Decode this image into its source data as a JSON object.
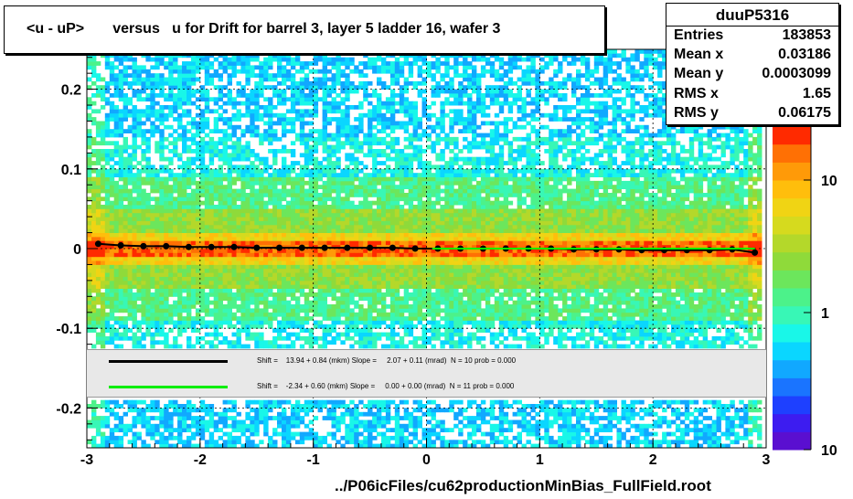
{
  "title": "<u - uP>       versus   u for Drift for barrel 3, layer 5 ladder 16, wafer 3",
  "stats": {
    "name": "duuP5316",
    "rows": [
      {
        "label": "Entries",
        "value": "183853"
      },
      {
        "label": "Mean x",
        "value": "0.03186"
      },
      {
        "label": "Mean y",
        "value": "0.0003099"
      },
      {
        "label": "RMS x",
        "value": "1.65"
      },
      {
        "label": "RMS y",
        "value": "0.06175"
      }
    ]
  },
  "fits": [
    {
      "color": "#000000",
      "text": "Shift =    13.94 + 0.84 (mkm) Slope =     2.07 + 0.11 (mrad)  N = 10 prob = 0.000"
    },
    {
      "color": "#00ee00",
      "text": "Shift =    -2.34 + 0.60 (mkm) Slope =     0.00 + 0.00 (mrad)  N = 11 prob = 0.000"
    }
  ],
  "footer": "../P06icFiles/cu62productionMinBias_FullField.root",
  "colors": {
    "palette_low": "#5a0fd0",
    "palette_high": "#ff2a00",
    "band": "#ffd200"
  },
  "chart_data": {
    "type": "heatmap",
    "title": "<u - uP>       versus   u for Drift for barrel 3, layer 5 ladder 16, wafer 3",
    "xlabel": "",
    "ylabel": "",
    "xlim": [
      -3,
      3
    ],
    "ylim": [
      -0.25,
      0.25
    ],
    "x_ticks": [
      -3,
      -2,
      -1,
      0,
      1,
      2,
      3
    ],
    "y_ticks": [
      -0.2,
      -0.1,
      0,
      0.1,
      0.2
    ],
    "grid": true,
    "z_scale": "log",
    "z_ticks": [
      "10",
      "1",
      "10"
    ],
    "series": [
      {
        "name": "profile",
        "x": [
          -2.9,
          -2.7,
          -2.5,
          -2.3,
          -2.1,
          -1.9,
          -1.7,
          -1.5,
          -1.3,
          -1.1,
          -0.9,
          -0.7,
          -0.5,
          -0.3,
          -0.1,
          0.1,
          0.3,
          0.5,
          0.7,
          0.9,
          1.1,
          1.3,
          1.5,
          1.7,
          1.9,
          2.1,
          2.3,
          2.5,
          2.7,
          2.9
        ],
        "y": [
          0.006,
          0.004,
          0.003,
          0.003,
          0.002,
          0.002,
          0.002,
          0.001,
          0.001,
          0.001,
          0.001,
          0.001,
          0.001,
          0.001,
          0.0,
          0.0,
          0.0,
          0.0,
          0.0,
          0.0,
          0.0,
          -0.001,
          -0.001,
          -0.001,
          -0.002,
          -0.002,
          -0.002,
          -0.002,
          -0.001,
          -0.005
        ]
      },
      {
        "name": "fit",
        "x": [
          0.05,
          2.9
        ],
        "y": [
          0.0,
          0.0
        ]
      }
    ]
  }
}
